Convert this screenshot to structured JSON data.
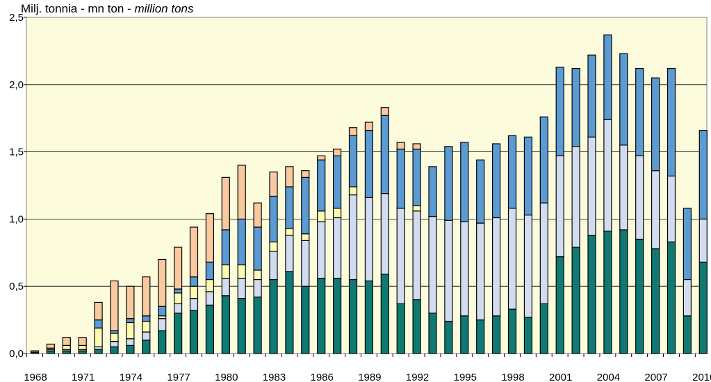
{
  "chart_data": {
    "type": "bar",
    "stacked": true,
    "ylabel_plain": "Milj. tonnia - mn ton - ",
    "ylabel_italic": "million tons",
    "ylim": [
      0,
      2.5
    ],
    "yticks": [
      "0,0",
      "0,5",
      "1,0",
      "1,5",
      "2,0",
      "2,5"
    ],
    "ytick_values": [
      0,
      0.5,
      1.0,
      1.5,
      2.0,
      2.5
    ],
    "xtick_labels": [
      "1968",
      "1971",
      "1974",
      "1977",
      "1980",
      "1983",
      "1986",
      "1989",
      "1992",
      "1995",
      "1998",
      "2001",
      "2004",
      "2007",
      "2010"
    ],
    "grid": true,
    "legend": "none",
    "categories": [
      "1968",
      "1969",
      "1970",
      "1971",
      "1972",
      "1973",
      "1974",
      "1975",
      "1976",
      "1977",
      "1978",
      "1979",
      "1980",
      "1981",
      "1982",
      "1983",
      "1984",
      "1985",
      "1986",
      "1987",
      "1988",
      "1989",
      "1990",
      "1991",
      "1992",
      "1993",
      "1994",
      "1995",
      "1996",
      "1997",
      "1998",
      "1999",
      "2000",
      "2001",
      "2002",
      "2003",
      "2004",
      "2005",
      "2006",
      "2007",
      "2008",
      "2009",
      "2010"
    ],
    "series": [
      {
        "color": "#0f7a74",
        "values": [
          0.01,
          0.02,
          0.02,
          0.02,
          0.03,
          0.05,
          0.06,
          0.1,
          0.17,
          0.3,
          0.32,
          0.36,
          0.43,
          0.41,
          0.42,
          0.55,
          0.61,
          0.5,
          0.56,
          0.56,
          0.55,
          0.54,
          0.59,
          0.37,
          0.4,
          0.3,
          0.24,
          0.28,
          0.25,
          0.28,
          0.33,
          0.27,
          0.37,
          0.72,
          0.79,
          0.88,
          0.91,
          0.92,
          0.85,
          0.78,
          0.83,
          0.28,
          0.68
        ]
      },
      {
        "color": "#d2dcf0",
        "values": [
          0.0,
          0.01,
          0.01,
          0.01,
          0.02,
          0.04,
          0.05,
          0.06,
          0.09,
          0.07,
          0.09,
          0.1,
          0.13,
          0.15,
          0.13,
          0.21,
          0.27,
          0.34,
          0.42,
          0.45,
          0.63,
          0.62,
          0.6,
          0.71,
          0.66,
          0.72,
          0.75,
          0.7,
          0.72,
          0.73,
          0.75,
          0.76,
          0.75,
          0.75,
          0.75,
          0.73,
          0.83,
          0.63,
          0.62,
          0.58,
          0.49,
          0.27,
          0.32
        ]
      },
      {
        "color": "#fbfbb4",
        "values": [
          0.0,
          0.01,
          0.03,
          0.03,
          0.14,
          0.06,
          0.12,
          0.08,
          0.02,
          0.08,
          0.09,
          0.09,
          0.1,
          0.1,
          0.07,
          0.07,
          0.05,
          0.05,
          0.08,
          0.07,
          0.06,
          0.0,
          0.0,
          0.0,
          0.04,
          0.0,
          0.0,
          0.0,
          0.0,
          0.0,
          0.0,
          0.0,
          0.0,
          0.0,
          0.0,
          0.0,
          0.0,
          0.0,
          0.0,
          0.0,
          0.0,
          0.0,
          0.0
        ]
      },
      {
        "color": "#5b9bd3",
        "values": [
          0.0,
          0.0,
          0.0,
          0.0,
          0.06,
          0.02,
          0.03,
          0.04,
          0.07,
          0.03,
          0.07,
          0.13,
          0.26,
          0.34,
          0.32,
          0.34,
          0.31,
          0.42,
          0.38,
          0.39,
          0.38,
          0.5,
          0.58,
          0.44,
          0.42,
          0.37,
          0.55,
          0.59,
          0.47,
          0.55,
          0.54,
          0.58,
          0.64,
          0.66,
          0.58,
          0.61,
          0.63,
          0.68,
          0.65,
          0.69,
          0.8,
          0.53,
          0.66
        ]
      },
      {
        "color": "#f9c9a0",
        "values": [
          0.01,
          0.03,
          0.06,
          0.06,
          0.13,
          0.37,
          0.24,
          0.29,
          0.35,
          0.31,
          0.37,
          0.36,
          0.39,
          0.4,
          0.18,
          0.18,
          0.15,
          0.05,
          0.03,
          0.05,
          0.06,
          0.06,
          0.06,
          0.05,
          0.04,
          0.0,
          0.0,
          0.0,
          0.0,
          0.0,
          0.0,
          0.0,
          0.0,
          0.0,
          0.0,
          0.0,
          0.0,
          0.0,
          0.0,
          0.0,
          0.0,
          0.0,
          0.0
        ]
      }
    ]
  }
}
